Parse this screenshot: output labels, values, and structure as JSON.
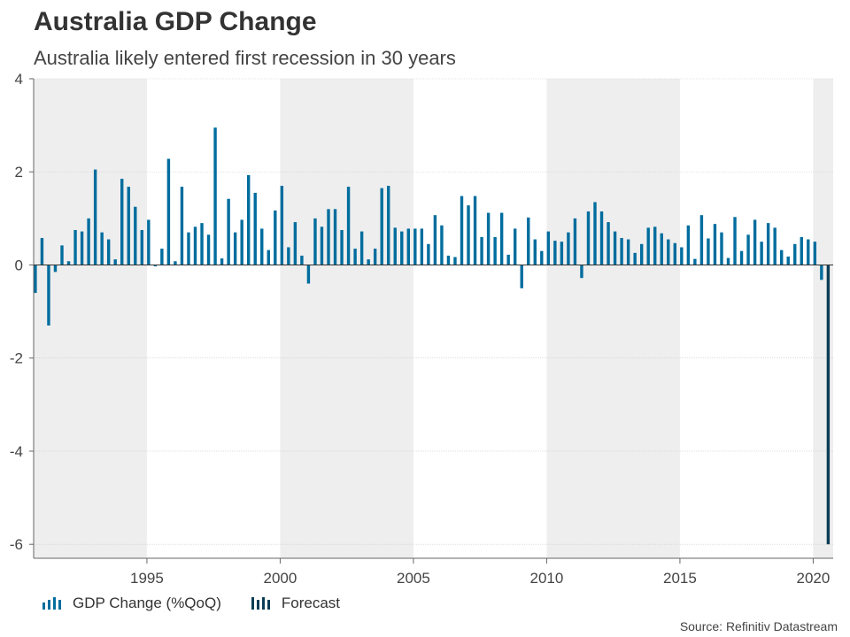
{
  "header": {
    "title": "Australia GDP Change",
    "subtitle": "Australia likely entered first recession in 30 years"
  },
  "legend": {
    "gdp_label": "GDP Change (%QoQ)",
    "forecast_label": "Forecast"
  },
  "source": "Source: Refinitiv Datastream",
  "colors": {
    "gdp": "#006d9e",
    "forecast": "#0d3d56",
    "band": "#eeeeee",
    "zero_line": "#333333",
    "grid": "#cccccc"
  },
  "chart_data": {
    "type": "bar",
    "title": "Australia GDP Change",
    "subtitle": "Australia likely entered first recession in 30 years",
    "xlabel": "",
    "ylabel": "",
    "ylim": [
      -6.3,
      4
    ],
    "yticks": [
      4,
      2,
      0,
      -2,
      -4,
      -6
    ],
    "xticks": [
      1995,
      2000,
      2005,
      2010,
      2015,
      2020
    ],
    "x_start": 1990.75,
    "x_end": 2020.75,
    "shaded_bands": [
      [
        1990.75,
        1995
      ],
      [
        2000,
        2005
      ],
      [
        2010,
        2015
      ],
      [
        2020,
        2020.75
      ]
    ],
    "series": [
      {
        "name": "GDP Change (%QoQ)",
        "start_year": 1990.75,
        "step": 0.25,
        "values": [
          -0.6,
          0.58,
          -1.3,
          -0.15,
          0.42,
          0.08,
          0.75,
          0.72,
          1.0,
          2.05,
          0.7,
          0.55,
          0.12,
          1.85,
          1.68,
          1.25,
          0.75,
          0.97,
          -0.03,
          0.35,
          2.28,
          0.08,
          1.68,
          0.7,
          0.82,
          0.9,
          0.65,
          2.95,
          0.14,
          1.42,
          0.7,
          0.97,
          1.93,
          1.55,
          0.78,
          0.32,
          1.17,
          1.7,
          0.38,
          0.92,
          0.2,
          -0.4,
          1.0,
          0.82,
          1.2,
          1.2,
          0.75,
          1.68,
          0.35,
          0.72,
          0.12,
          0.35,
          1.65,
          1.7,
          0.8,
          0.72,
          0.78,
          0.78,
          0.78,
          0.45,
          1.07,
          0.85,
          0.2,
          0.17,
          1.48,
          1.28,
          1.48,
          0.6,
          1.12,
          0.6,
          1.12,
          0.22,
          0.78,
          -0.5,
          1.02,
          0.55,
          0.3,
          0.72,
          0.52,
          0.5,
          0.7,
          1.0,
          -0.28,
          1.15,
          1.35,
          1.15,
          0.92,
          0.72,
          0.58,
          0.55,
          0.26,
          0.45,
          0.8,
          0.82,
          0.68,
          0.55,
          0.47,
          0.38,
          0.85,
          0.13,
          1.07,
          0.57,
          0.88,
          0.7,
          0.15,
          1.03,
          0.3,
          0.65,
          0.97,
          0.5,
          0.9,
          0.8,
          0.32,
          0.18,
          0.45,
          0.6,
          0.55,
          0.5,
          -0.32
        ]
      },
      {
        "name": "Forecast",
        "start_year": 2020.5,
        "step": 0.25,
        "values": [
          -6.0
        ]
      }
    ]
  }
}
